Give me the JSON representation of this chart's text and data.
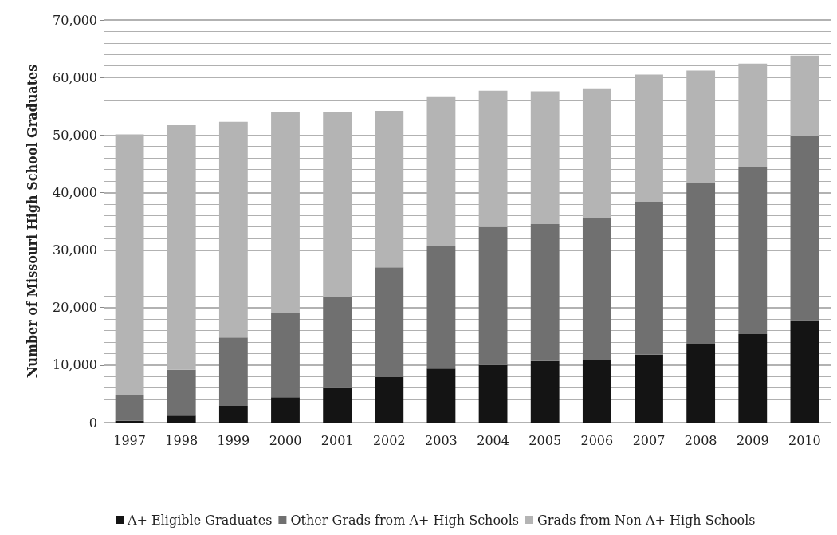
{
  "chart_data": {
    "type": "bar",
    "stacked": true,
    "ylabel": "Number of Missouri High School Graduates",
    "categories": [
      "1997",
      "1998",
      "1999",
      "2000",
      "2001",
      "2002",
      "2003",
      "2004",
      "2005",
      "2006",
      "2007",
      "2008",
      "2009",
      "2010"
    ],
    "series": [
      {
        "name": "A+ Eligible Graduates",
        "color": "#141414",
        "values": [
          300,
          1200,
          2900,
          4400,
          6000,
          7900,
          9400,
          10000,
          10700,
          10800,
          11800,
          13600,
          15400,
          17800
        ]
      },
      {
        "name": "Other Grads from A+ High Schools",
        "color": "#707070",
        "values": [
          4400,
          8000,
          11900,
          14700,
          15800,
          19100,
          21300,
          24000,
          23800,
          24800,
          26600,
          28100,
          29100,
          32000
        ]
      },
      {
        "name": "Grads from Non A+ High Schools",
        "color": "#b4b4b4",
        "values": [
          45400,
          42500,
          37500,
          34900,
          32200,
          27200,
          25900,
          23700,
          23100,
          22500,
          22100,
          19500,
          17900,
          14000
        ]
      }
    ],
    "ylim": [
      0,
      70000
    ],
    "yticks": [
      {
        "value": 0,
        "label": "0"
      },
      {
        "value": 10000,
        "label": "10,000"
      },
      {
        "value": 20000,
        "label": "20,000"
      },
      {
        "value": 30000,
        "label": "30,000"
      },
      {
        "value": 40000,
        "label": "40,000"
      },
      {
        "value": 50000,
        "label": "50,000"
      },
      {
        "value": 60000,
        "label": "60,000"
      },
      {
        "value": 70000,
        "label": "70,000"
      }
    ],
    "grid": true,
    "legend": "bottom"
  }
}
